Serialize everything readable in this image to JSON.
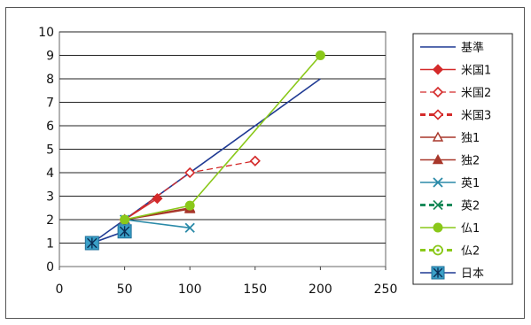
{
  "chart_data": {
    "type": "line",
    "title": "",
    "xlabel": "",
    "ylabel": "",
    "xlim": [
      0,
      250
    ],
    "ylim": [
      0,
      10
    ],
    "x_ticks": [
      "0",
      "50",
      "100",
      "150",
      "200",
      "250"
    ],
    "y_ticks": [
      "0",
      "1",
      "2",
      "3",
      "4",
      "5",
      "6",
      "7",
      "8",
      "9",
      "10"
    ],
    "grid": "horizontal",
    "legend_position": "right",
    "series": [
      {
        "name": "基準",
        "color": "#1f3a93",
        "dash": "solid",
        "marker": "none",
        "points": [
          [
            25,
            1
          ],
          [
            200,
            8
          ]
        ]
      },
      {
        "name": "米国1",
        "color": "#d42a2a",
        "dash": "solid",
        "marker": "diamond-filled",
        "points": [
          [
            50,
            2
          ],
          [
            75,
            2.9
          ]
        ]
      },
      {
        "name": "米国2",
        "color": "#d42a2a",
        "dash": "dashed",
        "marker": "diamond-open",
        "points": [
          [
            50,
            2
          ],
          [
            100,
            4
          ],
          [
            150,
            4.5
          ]
        ]
      },
      {
        "name": "米国3",
        "color": "#d42a2a",
        "dash": "dashed-bold",
        "marker": "diamond-open",
        "points": []
      },
      {
        "name": "独1",
        "color": "#a8372a",
        "dash": "solid",
        "marker": "triangle-open",
        "points": [
          [
            50,
            2
          ],
          [
            100,
            2.5
          ]
        ]
      },
      {
        "name": "独2",
        "color": "#a8372a",
        "dash": "solid",
        "marker": "triangle-filled",
        "points": [
          [
            50,
            2
          ],
          [
            100,
            2.45
          ]
        ]
      },
      {
        "name": "英1",
        "color": "#2a8aa8",
        "dash": "solid",
        "marker": "x",
        "points": [
          [
            50,
            2
          ],
          [
            100,
            1.65
          ]
        ]
      },
      {
        "name": "英2",
        "color": "#1a8a5a",
        "dash": "dashed-bold",
        "marker": "x",
        "points": []
      },
      {
        "name": "仏1",
        "color": "#8ac81a",
        "dash": "solid",
        "marker": "circle-filled",
        "points": [
          [
            50,
            2
          ],
          [
            100,
            2.6
          ],
          [
            200,
            9
          ]
        ]
      },
      {
        "name": "仏2",
        "color": "#8ac81a",
        "dash": "dashed-bold",
        "marker": "circle-dot",
        "points": []
      },
      {
        "name": "日本",
        "color": "#1f3a93",
        "dash": "solid",
        "marker": "asterisk-square",
        "points": [
          [
            25,
            1
          ],
          [
            50,
            1.5
          ]
        ]
      }
    ]
  }
}
